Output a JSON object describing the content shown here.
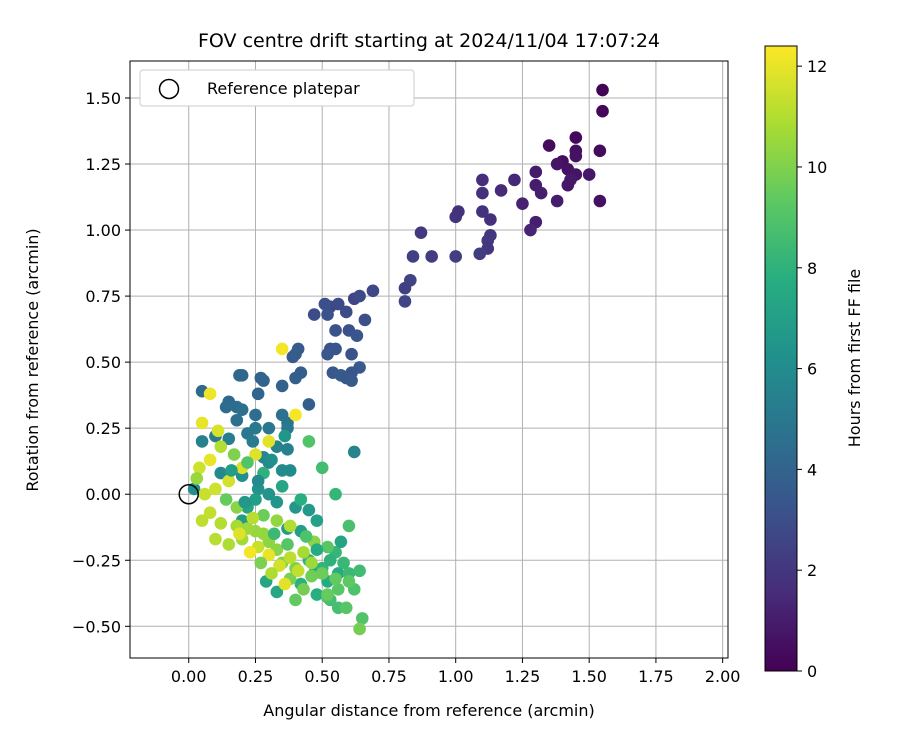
{
  "chart_data": {
    "type": "scatter",
    "title": "FOV centre drift starting at 2024/11/04 17:07:24",
    "xlabel": "Angular distance from reference (arcmin)",
    "ylabel": "Rotation from reference (arcmin)",
    "xlim": [
      -0.22,
      2.02
    ],
    "ylim": [
      -0.62,
      1.64
    ],
    "x_ticks": [
      "0.00",
      "0.25",
      "0.50",
      "0.75",
      "1.00",
      "1.25",
      "1.50",
      "1.75",
      "2.00"
    ],
    "x_tick_values": [
      0,
      0.25,
      0.5,
      0.75,
      1.0,
      1.25,
      1.5,
      1.75,
      2.0
    ],
    "y_ticks": [
      "−0.50",
      "−0.25",
      "0.00",
      "0.25",
      "0.50",
      "0.75",
      "1.00",
      "1.25",
      "1.50"
    ],
    "y_tick_values": [
      -0.5,
      -0.25,
      0,
      0.25,
      0.5,
      0.75,
      1.0,
      1.25,
      1.5
    ],
    "grid": true,
    "legend": {
      "placement": "top-left",
      "entries": [
        "Reference platepar"
      ]
    },
    "reference_point": {
      "x": 0.0,
      "y": 0.0
    },
    "colorbar": {
      "label": "Hours from first FF file",
      "colormap": "viridis",
      "range": [
        0,
        12.4
      ],
      "ticks": [
        "0",
        "2",
        "4",
        "6",
        "8",
        "10",
        "12"
      ],
      "tick_values": [
        0,
        2,
        4,
        6,
        8,
        10,
        12
      ]
    },
    "points": [
      [
        1.55,
        1.53,
        0.1
      ],
      [
        1.55,
        1.45,
        0.2
      ],
      [
        1.45,
        1.35,
        0.3
      ],
      [
        1.54,
        1.3,
        0.4
      ],
      [
        1.45,
        1.3,
        0.5
      ],
      [
        1.35,
        1.32,
        0.4
      ],
      [
        1.45,
        1.28,
        0.6
      ],
      [
        1.4,
        1.26,
        0.5
      ],
      [
        1.38,
        1.25,
        0.7
      ],
      [
        1.42,
        1.23,
        0.6
      ],
      [
        1.5,
        1.21,
        0.8
      ],
      [
        1.45,
        1.21,
        0.7
      ],
      [
        1.43,
        1.19,
        0.9
      ],
      [
        1.42,
        1.17,
        0.8
      ],
      [
        1.3,
        1.22,
        0.9
      ],
      [
        1.3,
        1.17,
        1.0
      ],
      [
        1.32,
        1.14,
        1.1
      ],
      [
        1.38,
        1.11,
        1.0
      ],
      [
        1.54,
        1.11,
        0.6
      ],
      [
        1.25,
        1.1,
        1.2
      ],
      [
        1.3,
        1.03,
        1.1
      ],
      [
        1.28,
        1.0,
        1.3
      ],
      [
        1.22,
        1.19,
        1.4
      ],
      [
        1.17,
        1.15,
        1.5
      ],
      [
        1.1,
        1.19,
        1.6
      ],
      [
        1.1,
        1.14,
        1.7
      ],
      [
        1.1,
        1.07,
        1.8
      ],
      [
        1.13,
        1.04,
        1.7
      ],
      [
        1.0,
        1.05,
        1.9
      ],
      [
        1.01,
        1.07,
        1.8
      ],
      [
        1.13,
        0.98,
        2.0
      ],
      [
        1.12,
        0.96,
        2.1
      ],
      [
        1.12,
        0.93,
        2.0
      ],
      [
        1.09,
        0.91,
        2.2
      ],
      [
        1.0,
        0.9,
        2.3
      ],
      [
        0.91,
        0.9,
        2.2
      ],
      [
        0.84,
        0.9,
        2.4
      ],
      [
        0.87,
        0.99,
        2.1
      ],
      [
        0.83,
        0.81,
        2.5
      ],
      [
        0.81,
        0.78,
        2.4
      ],
      [
        0.81,
        0.73,
        2.6
      ],
      [
        0.69,
        0.77,
        2.7
      ],
      [
        0.62,
        0.74,
        2.6
      ],
      [
        0.64,
        0.75,
        2.8
      ],
      [
        0.59,
        0.69,
        2.9
      ],
      [
        0.53,
        0.71,
        2.7
      ],
      [
        0.56,
        0.72,
        2.8
      ],
      [
        0.51,
        0.72,
        3.0
      ],
      [
        0.47,
        0.68,
        2.9
      ],
      [
        0.52,
        0.68,
        3.1
      ],
      [
        0.66,
        0.66,
        3.0
      ],
      [
        0.55,
        0.62,
        3.2
      ],
      [
        0.6,
        0.62,
        3.1
      ],
      [
        0.63,
        0.6,
        3.3
      ],
      [
        0.53,
        0.55,
        3.2
      ],
      [
        0.55,
        0.55,
        3.3
      ],
      [
        0.52,
        0.53,
        3.4
      ],
      [
        0.61,
        0.53,
        3.2
      ],
      [
        0.64,
        0.48,
        3.5
      ],
      [
        0.61,
        0.46,
        3.3
      ],
      [
        0.54,
        0.46,
        3.4
      ],
      [
        0.57,
        0.45,
        3.6
      ],
      [
        0.59,
        0.44,
        3.4
      ],
      [
        0.61,
        0.43,
        3.5
      ],
      [
        0.41,
        0.55,
        3.6
      ],
      [
        0.39,
        0.52,
        3.5
      ],
      [
        0.4,
        0.53,
        3.7
      ],
      [
        0.4,
        0.44,
        3.8
      ],
      [
        0.42,
        0.46,
        3.7
      ],
      [
        0.35,
        0.41,
        3.9
      ],
      [
        0.45,
        0.34,
        3.8
      ],
      [
        0.27,
        0.44,
        3.9
      ],
      [
        0.28,
        0.43,
        4.0
      ],
      [
        0.2,
        0.45,
        4.1
      ],
      [
        0.19,
        0.45,
        4.2
      ],
      [
        0.26,
        0.38,
        4.0
      ],
      [
        0.05,
        0.39,
        4.3
      ],
      [
        0.15,
        0.35,
        4.2
      ],
      [
        0.14,
        0.33,
        4.4
      ],
      [
        0.18,
        0.33,
        4.5
      ],
      [
        0.2,
        0.32,
        4.6
      ],
      [
        0.25,
        0.3,
        4.5
      ],
      [
        0.35,
        0.3,
        4.7
      ],
      [
        0.18,
        0.28,
        4.6
      ],
      [
        0.37,
        0.27,
        4.8
      ],
      [
        0.37,
        0.25,
        5.0
      ],
      [
        0.3,
        0.25,
        4.9
      ],
      [
        0.25,
        0.25,
        5.1
      ],
      [
        0.22,
        0.23,
        5.0
      ],
      [
        0.1,
        0.22,
        5.2
      ],
      [
        0.15,
        0.21,
        5.3
      ],
      [
        0.05,
        0.2,
        5.4
      ],
      [
        0.24,
        0.2,
        5.2
      ],
      [
        0.33,
        0.18,
        5.5
      ],
      [
        0.37,
        0.17,
        5.4
      ],
      [
        0.62,
        0.16,
        5.6
      ],
      [
        0.28,
        0.14,
        5.7
      ],
      [
        0.3,
        0.12,
        5.8
      ],
      [
        0.35,
        0.09,
        5.9
      ],
      [
        0.38,
        0.09,
        6.0
      ],
      [
        0.12,
        0.08,
        5.8
      ],
      [
        0.2,
        0.07,
        6.1
      ],
      [
        0.02,
        0.02,
        6.2
      ],
      [
        0.26,
        0.02,
        6.3
      ],
      [
        0.3,
        0.0,
        6.4
      ],
      [
        0.33,
        -0.03,
        6.5
      ],
      [
        0.4,
        -0.05,
        6.6
      ],
      [
        0.45,
        -0.06,
        6.7
      ],
      [
        0.2,
        -0.1,
        6.8
      ],
      [
        0.37,
        -0.13,
        6.9
      ],
      [
        0.42,
        -0.14,
        7.0
      ],
      [
        0.48,
        -0.1,
        7.1
      ],
      [
        0.22,
        -0.05,
        7.2
      ],
      [
        0.25,
        -0.02,
        7.0
      ],
      [
        0.29,
        -0.33,
        7.3
      ],
      [
        0.33,
        -0.37,
        7.4
      ],
      [
        0.47,
        -0.3,
        7.5
      ],
      [
        0.52,
        -0.33,
        7.6
      ],
      [
        0.56,
        -0.3,
        7.7
      ],
      [
        0.48,
        -0.38,
        7.8
      ],
      [
        0.42,
        -0.34,
        7.9
      ],
      [
        0.45,
        -0.25,
        8.0
      ],
      [
        0.5,
        -0.28,
        8.1
      ],
      [
        0.55,
        -0.22,
        8.2
      ],
      [
        0.58,
        -0.26,
        8.3
      ],
      [
        0.6,
        -0.3,
        8.4
      ],
      [
        0.64,
        -0.29,
        8.5
      ],
      [
        0.53,
        -0.4,
        8.6
      ],
      [
        0.56,
        -0.43,
        8.7
      ],
      [
        0.52,
        -0.39,
        8.8
      ],
      [
        0.62,
        -0.36,
        8.9
      ],
      [
        0.65,
        -0.47,
        9.0
      ],
      [
        0.59,
        -0.43,
        9.1
      ],
      [
        0.56,
        -0.36,
        9.2
      ],
      [
        0.6,
        -0.33,
        9.3
      ],
      [
        0.55,
        -0.32,
        9.4
      ],
      [
        0.52,
        -0.38,
        9.5
      ],
      [
        0.5,
        -0.3,
        9.6
      ],
      [
        0.46,
        -0.31,
        9.7
      ],
      [
        0.43,
        -0.36,
        9.8
      ],
      [
        0.38,
        -0.32,
        9.9
      ],
      [
        0.4,
        -0.28,
        10.0
      ],
      [
        0.35,
        -0.26,
        10.1
      ],
      [
        0.33,
        -0.21,
        10.2
      ],
      [
        0.3,
        -0.18,
        10.3
      ],
      [
        0.28,
        -0.15,
        10.4
      ],
      [
        0.25,
        -0.14,
        10.5
      ],
      [
        0.22,
        -0.13,
        10.6
      ],
      [
        0.2,
        -0.17,
        10.7
      ],
      [
        0.18,
        -0.12,
        10.8
      ],
      [
        0.15,
        -0.19,
        10.9
      ],
      [
        0.12,
        -0.11,
        11.0
      ],
      [
        0.1,
        -0.17,
        11.1
      ],
      [
        0.05,
        -0.1,
        11.2
      ],
      [
        0.08,
        -0.07,
        11.3
      ],
      [
        0.06,
        0.0,
        11.4
      ],
      [
        0.1,
        0.02,
        11.5
      ],
      [
        0.15,
        0.05,
        11.6
      ],
      [
        0.2,
        0.1,
        11.7
      ],
      [
        0.25,
        0.15,
        11.8
      ],
      [
        0.3,
        0.2,
        11.9
      ],
      [
        0.05,
        0.27,
        12.0
      ],
      [
        0.08,
        0.38,
        12.1
      ],
      [
        0.35,
        0.55,
        12.2
      ],
      [
        0.4,
        0.3,
        12.3
      ],
      [
        0.45,
        0.2,
        9.0
      ],
      [
        0.5,
        0.1,
        8.6
      ],
      [
        0.55,
        0.0,
        8.2
      ],
      [
        0.4,
        -0.4,
        9.4
      ],
      [
        0.64,
        -0.51,
        9.8
      ],
      [
        0.6,
        -0.12,
        8.8
      ],
      [
        0.52,
        -0.2,
        9.2
      ],
      [
        0.47,
        -0.18,
        10.2
      ],
      [
        0.43,
        -0.22,
        10.8
      ],
      [
        0.38,
        -0.24,
        11.2
      ],
      [
        0.34,
        -0.27,
        11.6
      ],
      [
        0.3,
        -0.23,
        12.0
      ],
      [
        0.26,
        -0.2,
        11.4
      ],
      [
        0.23,
        -0.22,
        12.2
      ],
      [
        0.19,
        -0.15,
        11.8
      ],
      [
        0.28,
        -0.08,
        9.6
      ],
      [
        0.33,
        -0.1,
        10.4
      ],
      [
        0.38,
        -0.12,
        11.0
      ],
      [
        0.42,
        -0.02,
        7.8
      ],
      [
        0.35,
        0.03,
        7.4
      ],
      [
        0.28,
        0.08,
        8.0
      ],
      [
        0.22,
        0.12,
        9.0
      ],
      [
        0.17,
        0.15,
        10.0
      ],
      [
        0.12,
        0.18,
        11.0
      ],
      [
        0.08,
        0.13,
        12.0
      ],
      [
        0.04,
        0.1,
        11.5
      ],
      [
        0.03,
        0.06,
        10.5
      ],
      [
        0.14,
        -0.02,
        9.5
      ],
      [
        0.18,
        -0.05,
        10.2
      ],
      [
        0.24,
        -0.09,
        11.1
      ],
      [
        0.32,
        -0.15,
        8.4
      ],
      [
        0.37,
        -0.19,
        9.1
      ],
      [
        0.44,
        -0.16,
        8.9
      ],
      [
        0.48,
        -0.21,
        7.6
      ],
      [
        0.53,
        -0.25,
        8.0
      ],
      [
        0.57,
        -0.18,
        7.2
      ],
      [
        0.46,
        -0.26,
        10.6
      ],
      [
        0.41,
        -0.29,
        11.3
      ],
      [
        0.36,
        -0.34,
        11.9
      ],
      [
        0.31,
        -0.3,
        10.9
      ],
      [
        0.27,
        -0.26,
        9.9
      ],
      [
        0.21,
        -0.03,
        6.6
      ],
      [
        0.16,
        0.09,
        6.9
      ],
      [
        0.11,
        0.24,
        11.7
      ],
      [
        0.26,
        0.05,
        5.9
      ],
      [
        0.31,
        0.13,
        6.2
      ],
      [
        0.36,
        0.22,
        6.5
      ]
    ]
  }
}
